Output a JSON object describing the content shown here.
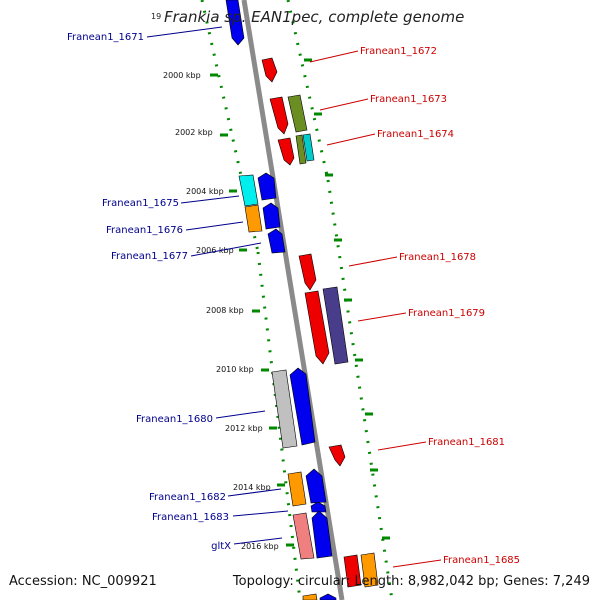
{
  "map": {
    "title": "Frankia sp. EAN1pec, complete genome",
    "title_prefix": "19",
    "accession_text": "Accession: NC_009921",
    "summary_text": "Topology: circular; Length: 8,982,042 bp; Genes: 7,249"
  },
  "colors": {
    "backbone": "#8a8a8a",
    "tick": "#008800",
    "label_left": "#00008b",
    "label_right": "#cc0000"
  },
  "kbp_markers": [
    "2000 kbp",
    "2002 kbp",
    "2004 kbp",
    "2006 kbp",
    "2008 kbp",
    "2010 kbp",
    "2012 kbp",
    "2014 kbp",
    "2016 kbp"
  ],
  "left_labels": [
    "Franean1_1671",
    "Franean1_1675",
    "Franean1_1676",
    "Franean1_1677",
    "Franean1_1680",
    "Franean1_1682",
    "Franean1_1683",
    "gltX"
  ],
  "right_labels": [
    "Franean1_1672",
    "Franean1_1673",
    "Franean1_1674",
    "Franean1_1678",
    "Franean1_1679",
    "Franean1_1681",
    "Franean1_1685"
  ]
}
